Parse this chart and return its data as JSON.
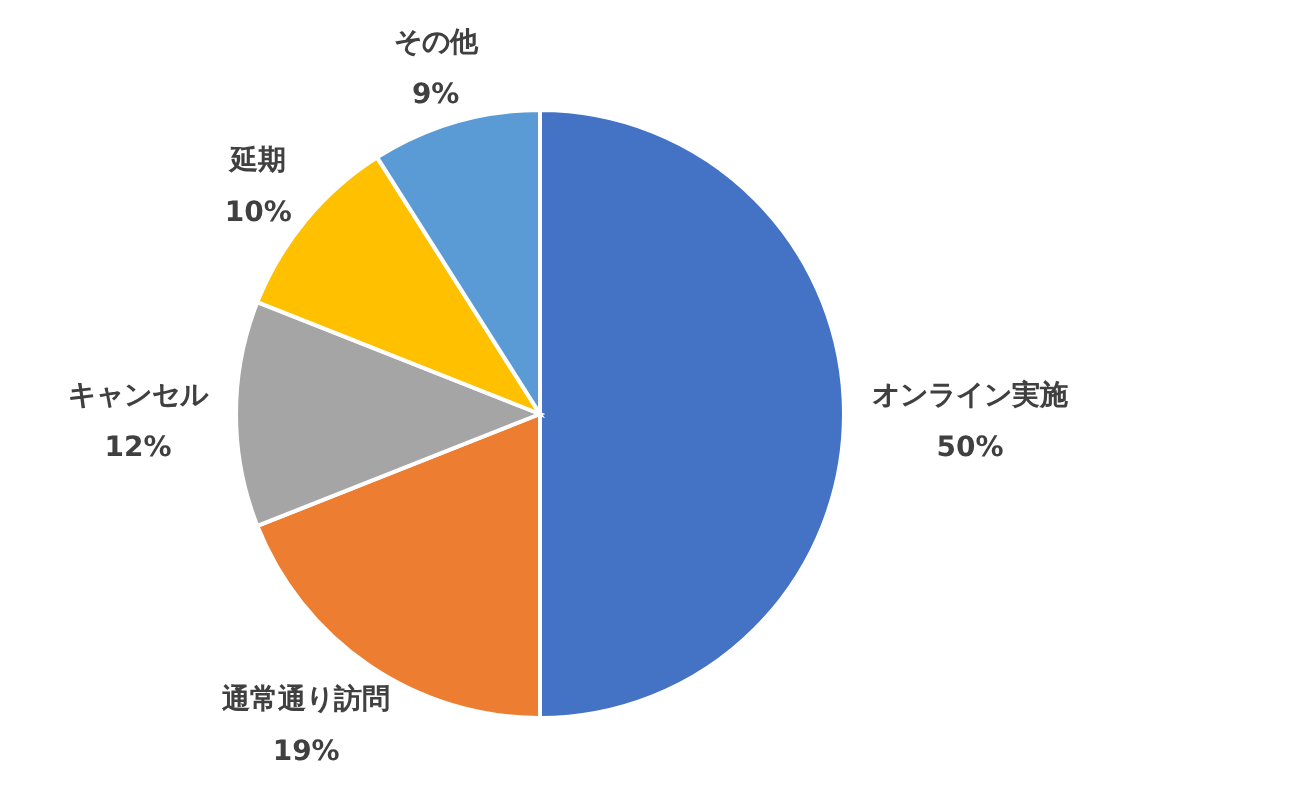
{
  "chart_data": {
    "type": "pie",
    "categories": [
      "オンライン実施",
      "通常通り訪問",
      "キャンセル",
      "延期",
      "その他"
    ],
    "values": [
      50,
      19,
      12,
      10,
      9
    ],
    "colors": [
      "#4472c4",
      "#ed7d31",
      "#a5a5a5",
      "#ffc000",
      "#5b9bd5"
    ],
    "value_labels": [
      "50%",
      "19%",
      "12%",
      "10%",
      "9%"
    ]
  }
}
